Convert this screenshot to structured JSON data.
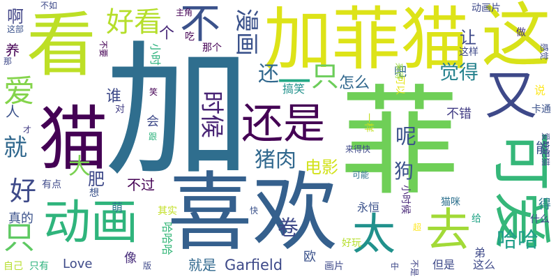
{
  "cloud": {
    "background": "#ffffff",
    "words": [
      {
        "text": "加",
        "color": "#2f6e8e"
      },
      {
        "text": "菲",
        "color": "#6fcf57"
      },
      {
        "text": "喜欢",
        "color": "#35608d"
      },
      {
        "text": "猫",
        "color": "#440154"
      },
      {
        "text": "看",
        "color": "#bddf26"
      },
      {
        "text": "加菲猫",
        "color": "#dde318"
      },
      {
        "text": "这",
        "color": "#d8e219"
      },
      {
        "text": "可爱",
        "color": "#35b779"
      },
      {
        "text": "还是",
        "color": "#440154"
      },
      {
        "text": "动画",
        "color": "#2fb47c"
      },
      {
        "text": "不",
        "color": "#3b528b"
      },
      {
        "text": "去",
        "color": "#a2da37"
      },
      {
        "text": "太",
        "color": "#21918c"
      },
      {
        "text": "又",
        "color": "#3e4989"
      },
      {
        "text": "好看",
        "color": "#b5de2b"
      },
      {
        "text": "一",
        "color": "#22a884"
      },
      {
        "text": "只",
        "color": "#6ccd5a"
      },
      {
        "text": "只",
        "color": "#5ec962"
      },
      {
        "text": "漫画",
        "color": "#3b528b"
      },
      {
        "text": "爱",
        "color": "#84d44b"
      },
      {
        "text": "猪肉",
        "color": "#31688e"
      },
      {
        "text": "时候",
        "color": "#482374"
      },
      {
        "text": "觉得",
        "color": "#26828e"
      },
      {
        "text": "电影",
        "color": "#d2e21b"
      },
      {
        "text": "还",
        "color": "#31688e"
      },
      {
        "text": "哈哈",
        "color": "#1f9e89"
      },
      {
        "text": "卷",
        "color": "#3e4989"
      },
      {
        "text": "好",
        "color": "#3e4a89"
      },
      {
        "text": "就",
        "color": "#31688e"
      },
      {
        "text": "呢",
        "color": "#3b528b"
      },
      {
        "text": "狗",
        "color": "#3b528b"
      },
      {
        "text": "大",
        "color": "#7ad151"
      },
      {
        "text": "啊",
        "color": "#414487"
      },
      {
        "text": "养",
        "color": "#440154"
      },
      {
        "text": "谁",
        "color": "#3e4a89"
      },
      {
        "text": "人",
        "color": "#3b528b"
      },
      {
        "text": "肥",
        "color": "#3e4989"
      },
      {
        "text": "不过",
        "color": "#440154"
      },
      {
        "text": "怎么",
        "color": "#31688e"
      },
      {
        "text": "个",
        "color": "#482878"
      },
      {
        "text": "让",
        "color": "#3e4989"
      },
      {
        "text": "能",
        "color": "#3b528b"
      },
      {
        "text": "得",
        "color": "#2a788e"
      },
      {
        "text": "Garfield",
        "color": "#3e4a89"
      },
      {
        "text": "就是",
        "color": "#31688e"
      },
      {
        "text": "Love",
        "color": "#3e4a89"
      },
      {
        "text": "真的",
        "color": "#3b528b"
      },
      {
        "text": "像",
        "color": "#472c7a"
      },
      {
        "text": "欧",
        "color": "#3b528b"
      },
      {
        "text": "不错",
        "color": "#433e85"
      },
      {
        "text": "吧",
        "color": "#31688e"
      },
      {
        "text": "哈哈哈",
        "color": "#35b779"
      },
      {
        "text": "搞笑",
        "color": "#21918c"
      },
      {
        "text": "小时候",
        "color": "#482878"
      },
      {
        "text": "永恒",
        "color": "#3b528b"
      },
      {
        "text": "说",
        "color": "#fde725"
      },
      {
        "text": "小时",
        "color": "#2db27d"
      },
      {
        "text": "会",
        "color": "#3e4989"
      },
      {
        "text": "一样",
        "color": "#c2df23"
      },
      {
        "text": "萌",
        "color": "#2a788e"
      },
      {
        "text": "可以",
        "color": "#e5e419"
      },
      {
        "text": "弟",
        "color": "#3e4989"
      },
      {
        "text": "这么",
        "color": "#3e4989"
      },
      {
        "text": "但是",
        "color": "#3e4989"
      },
      {
        "text": "画片",
        "color": "#3e4989"
      },
      {
        "text": "猫咪",
        "color": "#2d708e"
      },
      {
        "text": "其实",
        "color": "#c2df23"
      },
      {
        "text": "有点",
        "color": "#3e4989"
      },
      {
        "text": "想",
        "color": "#3b528b"
      },
      {
        "text": "自己",
        "color": "#b5de2b"
      },
      {
        "text": "只有",
        "color": "#2db27d"
      },
      {
        "text": "好玩",
        "color": "#b5de2b"
      },
      {
        "text": "动画片",
        "color": "#3e4989"
      },
      {
        "text": "做",
        "color": "#46337f"
      },
      {
        "text": "卡通",
        "color": "#3b528b"
      },
      {
        "text": "什么",
        "color": "#3e4989"
      },
      {
        "text": "给",
        "color": "#20a386"
      },
      {
        "text": "吃",
        "color": "#440154"
      },
      {
        "text": "那个",
        "color": "#440154"
      },
      {
        "text": "主角",
        "color": "#440154"
      },
      {
        "text": "不如",
        "color": "#3e4989"
      },
      {
        "text": "这部",
        "color": "#3b528b"
      },
      {
        "text": "那",
        "color": "#3e4989"
      },
      {
        "text": "不要",
        "color": "#440154"
      },
      {
        "text": "这样",
        "color": "#3e4989"
      },
      {
        "text": "来得快",
        "color": "#3e4989"
      },
      {
        "text": "来得",
        "color": "#9bd93c"
      },
      {
        "text": "感觉",
        "color": "#3e4989"
      },
      {
        "text": "爱吃肥猫",
        "color": "#3e4989"
      },
      {
        "text": "可能",
        "color": "#2d708e"
      },
      {
        "text": "快",
        "color": "#3b528b"
      },
      {
        "text": "超",
        "color": "#fde725"
      },
      {
        "text": "版",
        "color": "#3e4989"
      },
      {
        "text": "中",
        "color": "#3e4989"
      },
      {
        "text": "不是",
        "color": "#414487"
      },
      {
        "text": "笑",
        "color": "#440154"
      },
      {
        "text": "对",
        "color": "#433e85"
      },
      {
        "text": "跟",
        "color": "#2db27d"
      },
      {
        "text": "才",
        "color": "#433e85"
      }
    ]
  }
}
